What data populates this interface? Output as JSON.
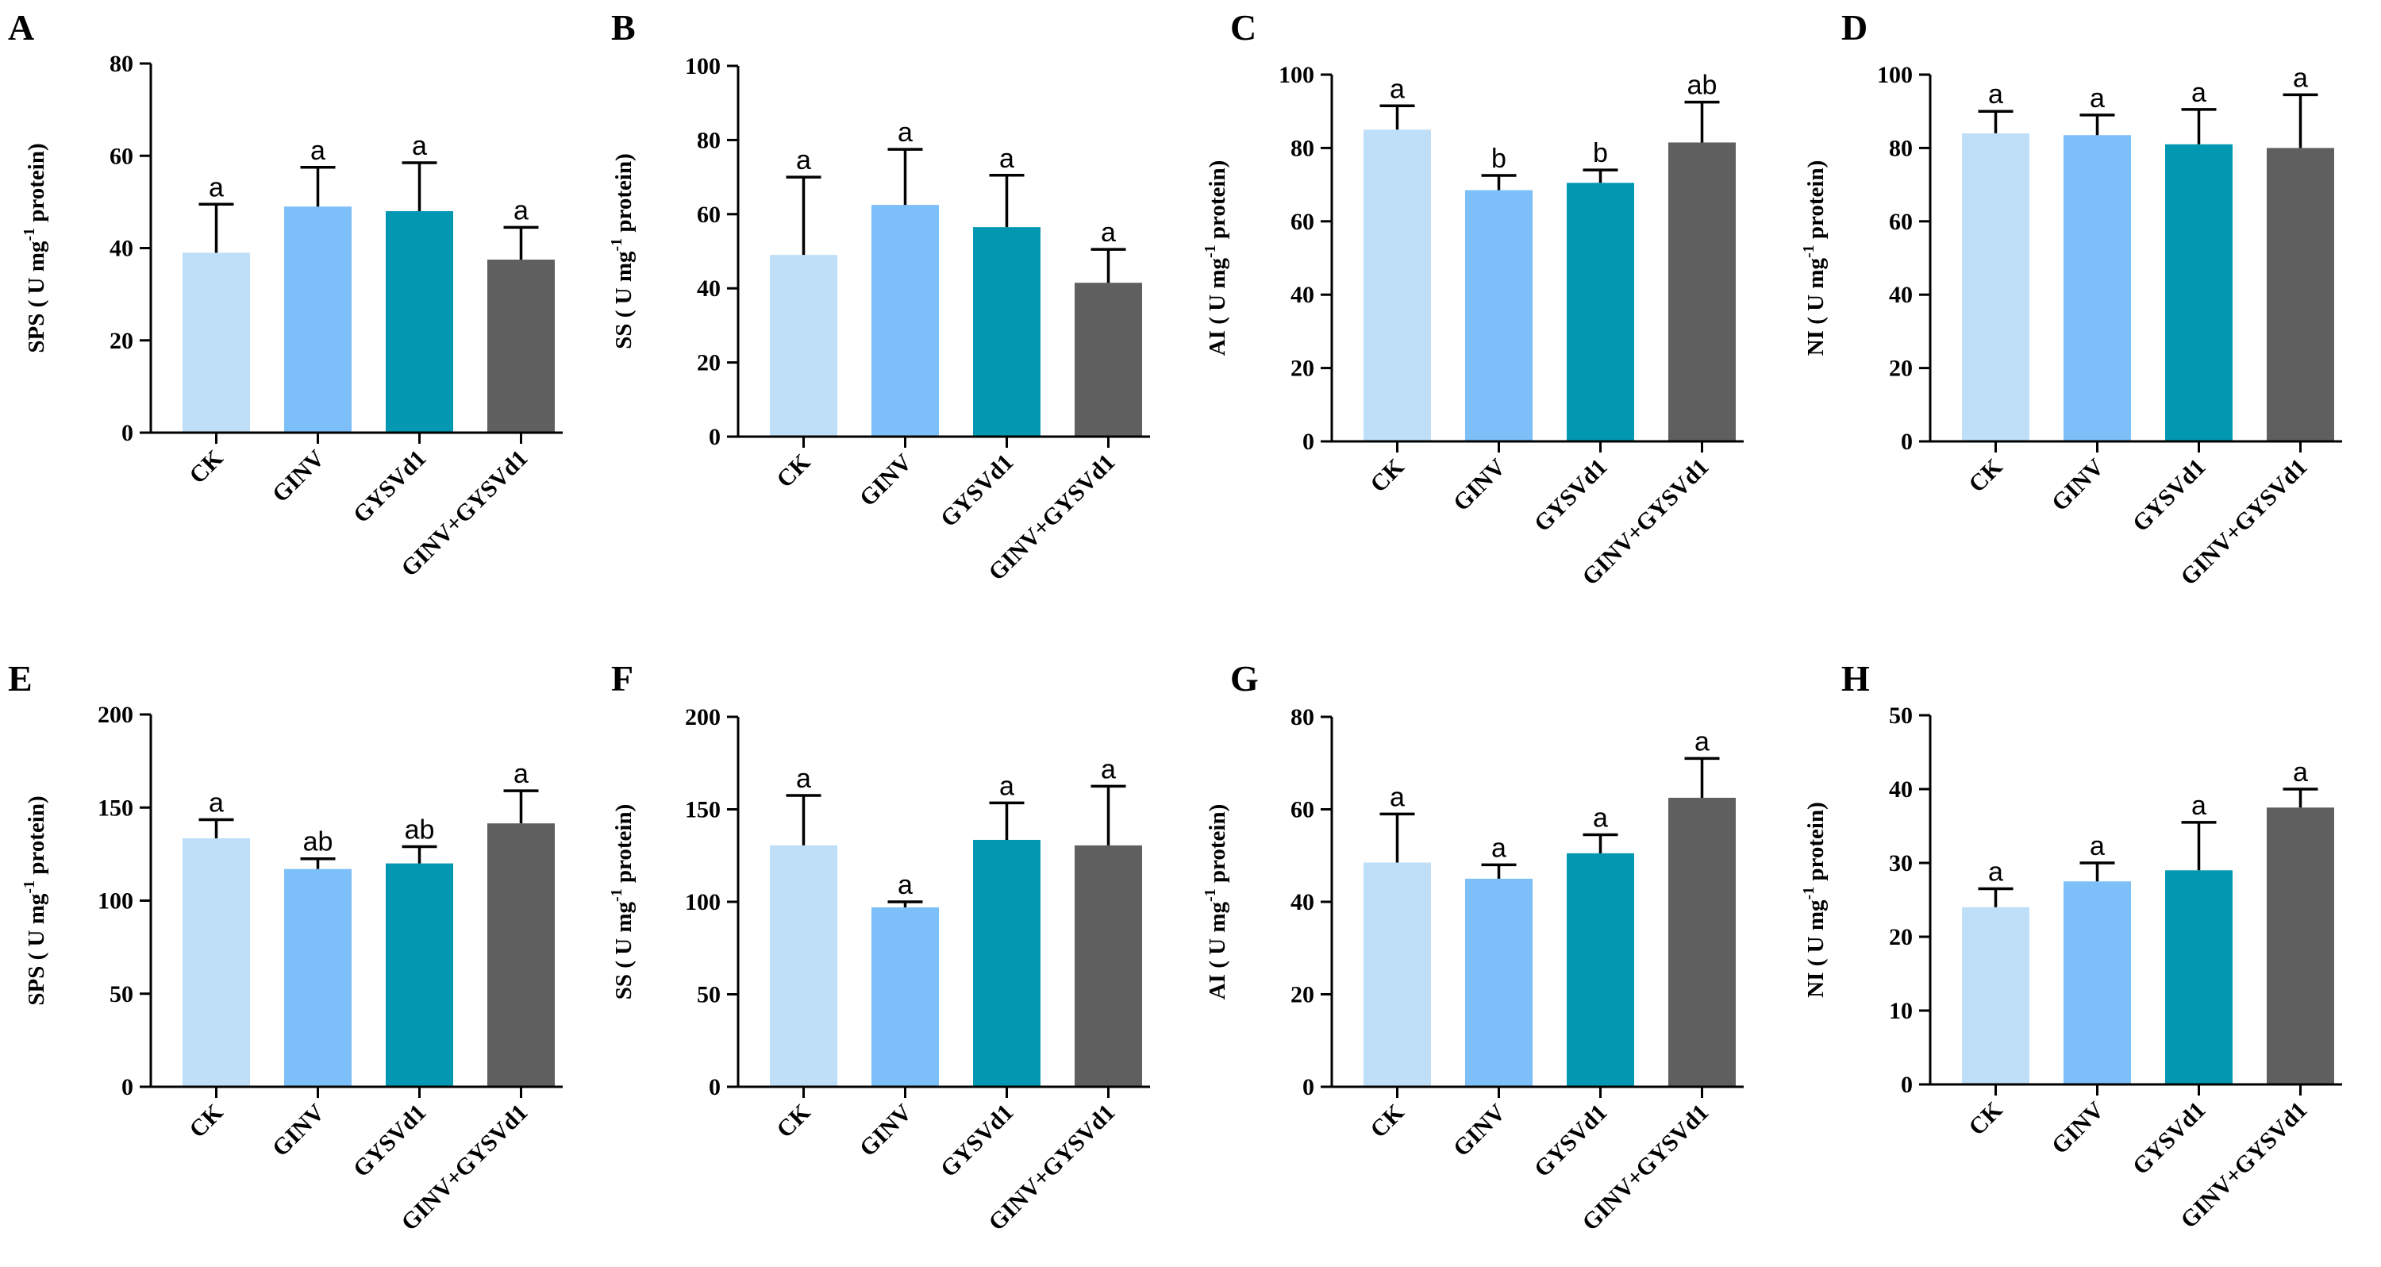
{
  "colors": {
    "CK": "#bfdff8",
    "GINV": "#7dbff9",
    "GYSVd1": "#0398b1",
    "GINV+GYSVd1": "#5f5f5f"
  },
  "chart_data": [
    {
      "panel": "A",
      "type": "bar",
      "categories": [
        "CK",
        "GINV",
        "GYSVd1",
        "GINV+GYSVd1"
      ],
      "values": [
        39,
        49,
        48,
        37.5
      ],
      "errors": [
        10.5,
        8.5,
        10.5,
        7
      ],
      "significance": [
        "a",
        "a",
        "a",
        "a"
      ],
      "ylabel": "SPS ( U mg-1 protein)",
      "ylabel_main": "SPS ( U mg",
      "ylabel_sup": "-1",
      "ylabel_end": " protein)",
      "ylim": [
        0,
        80
      ],
      "yticks": [
        0,
        20,
        40,
        60,
        80
      ]
    },
    {
      "panel": "B",
      "type": "bar",
      "categories": [
        "CK",
        "GINV",
        "GYSVd1",
        "GINV+GYSVd1"
      ],
      "values": [
        49,
        62.5,
        56.5,
        41.5
      ],
      "errors": [
        21,
        15,
        14,
        9
      ],
      "significance": [
        "a",
        "a",
        "a",
        "a"
      ],
      "ylabel": "SS ( U mg-1 protein)",
      "ylabel_main": "SS ( U mg",
      "ylabel_sup": "-1",
      "ylabel_end": " protein)",
      "ylim": [
        0,
        100
      ],
      "yticks": [
        0,
        20,
        40,
        60,
        80,
        100
      ]
    },
    {
      "panel": "C",
      "type": "bar",
      "categories": [
        "CK",
        "GINV",
        "GYSVd1",
        "GINV+GYSVd1"
      ],
      "values": [
        85,
        68.5,
        70.5,
        81.5
      ],
      "errors": [
        6.5,
        4,
        3.5,
        11
      ],
      "significance": [
        "a",
        "b",
        "b",
        "ab"
      ],
      "ylabel": "AI ( U mg-1 protein)",
      "ylabel_main": "AI ( U mg",
      "ylabel_sup": "-1",
      "ylabel_end": " protein)",
      "ylim": [
        0,
        100
      ],
      "yticks": [
        0,
        20,
        40,
        60,
        80,
        100
      ]
    },
    {
      "panel": "D",
      "type": "bar",
      "categories": [
        "CK",
        "GINV",
        "GYSVd1",
        "GINV+GYSVd1"
      ],
      "values": [
        84,
        83.5,
        81,
        80
      ],
      "errors": [
        6,
        5.5,
        9.5,
        14.5
      ],
      "significance": [
        "a",
        "a",
        "a",
        "a"
      ],
      "ylabel": "NI ( U mg-1 protein)",
      "ylabel_main": "NI ( U mg",
      "ylabel_sup": "-1",
      "ylabel_end": " protein)",
      "ylim": [
        0,
        100
      ],
      "yticks": [
        0,
        20,
        40,
        60,
        80,
        100
      ]
    },
    {
      "panel": "E",
      "type": "bar",
      "categories": [
        "CK",
        "GINV",
        "GYSVd1",
        "GINV+GYSVd1"
      ],
      "values": [
        133.5,
        117,
        120,
        141.5
      ],
      "errors": [
        10,
        5.5,
        9,
        17.5
      ],
      "significance": [
        "a",
        "ab",
        "ab",
        "a"
      ],
      "ylabel": "SPS ( U mg-1 protein)",
      "ylabel_main": "SPS ( U mg",
      "ylabel_sup": "-1",
      "ylabel_end": " protein)",
      "ylim": [
        0,
        200
      ],
      "yticks": [
        0,
        50,
        100,
        150,
        200
      ]
    },
    {
      "panel": "F",
      "type": "bar",
      "categories": [
        "CK",
        "GINV",
        "GYSVd1",
        "GINV+GYSVd1"
      ],
      "values": [
        130.5,
        97,
        133.5,
        130.5
      ],
      "errors": [
        27,
        3,
        20,
        32
      ],
      "significance": [
        "a",
        "a",
        "a",
        "a"
      ],
      "ylabel": "SS ( U mg-1 protein)",
      "ylabel_main": "SS ( U mg",
      "ylabel_sup": "-1",
      "ylabel_end": " protein)",
      "ylim": [
        0,
        200
      ],
      "yticks": [
        0,
        50,
        100,
        150,
        200
      ]
    },
    {
      "panel": "G",
      "type": "bar",
      "categories": [
        "CK",
        "GINV",
        "GYSVd1",
        "GINV+GYSVd1"
      ],
      "values": [
        48.5,
        45,
        50.5,
        62.5
      ],
      "errors": [
        10.5,
        3,
        4,
        8.5
      ],
      "significance": [
        "a",
        "a",
        "a",
        "a"
      ],
      "ylabel": "AI ( U mg-1 protein)",
      "ylabel_main": "AI ( U mg",
      "ylabel_sup": "-1",
      "ylabel_end": " protein)",
      "ylim": [
        0,
        80
      ],
      "yticks": [
        0,
        20,
        40,
        60,
        80
      ]
    },
    {
      "panel": "H",
      "type": "bar",
      "categories": [
        "CK",
        "GINV",
        "GYSVd1",
        "GINV+GYSVd1"
      ],
      "values": [
        24,
        27.5,
        29,
        37.5
      ],
      "errors": [
        2.5,
        2.5,
        6.5,
        2.5
      ],
      "significance": [
        "a",
        "a",
        "a",
        "a"
      ],
      "ylabel": "NI ( U mg-1 protein)",
      "ylabel_main": "NI ( U mg",
      "ylabel_sup": "-1",
      "ylabel_end": " protein)",
      "ylim": [
        0,
        50
      ],
      "yticks": [
        0,
        10,
        20,
        30,
        40,
        50
      ]
    }
  ]
}
